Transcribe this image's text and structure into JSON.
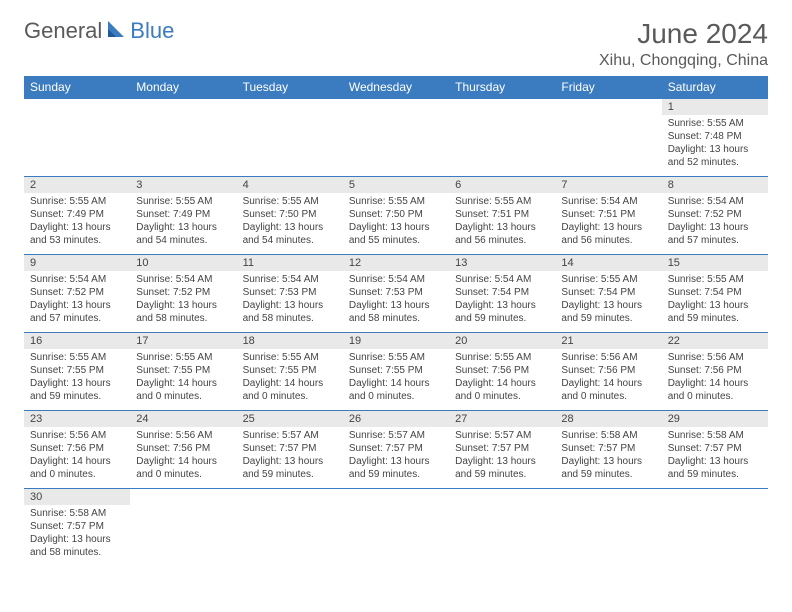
{
  "logo": {
    "text1": "General",
    "text2": "Blue"
  },
  "title": "June 2024",
  "location": "Xihu, Chongqing, China",
  "colors": {
    "header_bg": "#3b7bbf",
    "header_text": "#ffffff",
    "daynum_bg": "#e9e9e9",
    "border": "#3b7bbf",
    "text": "#444444",
    "logo_gray": "#5a5a5a",
    "logo_blue": "#3b7bbf"
  },
  "weekdays": [
    "Sunday",
    "Monday",
    "Tuesday",
    "Wednesday",
    "Thursday",
    "Friday",
    "Saturday"
  ],
  "weeks": [
    [
      null,
      null,
      null,
      null,
      null,
      null,
      {
        "n": "1",
        "sr": "5:55 AM",
        "ss": "7:48 PM",
        "dl": "13 hours and 52 minutes."
      }
    ],
    [
      {
        "n": "2",
        "sr": "5:55 AM",
        "ss": "7:49 PM",
        "dl": "13 hours and 53 minutes."
      },
      {
        "n": "3",
        "sr": "5:55 AM",
        "ss": "7:49 PM",
        "dl": "13 hours and 54 minutes."
      },
      {
        "n": "4",
        "sr": "5:55 AM",
        "ss": "7:50 PM",
        "dl": "13 hours and 54 minutes."
      },
      {
        "n": "5",
        "sr": "5:55 AM",
        "ss": "7:50 PM",
        "dl": "13 hours and 55 minutes."
      },
      {
        "n": "6",
        "sr": "5:55 AM",
        "ss": "7:51 PM",
        "dl": "13 hours and 56 minutes."
      },
      {
        "n": "7",
        "sr": "5:54 AM",
        "ss": "7:51 PM",
        "dl": "13 hours and 56 minutes."
      },
      {
        "n": "8",
        "sr": "5:54 AM",
        "ss": "7:52 PM",
        "dl": "13 hours and 57 minutes."
      }
    ],
    [
      {
        "n": "9",
        "sr": "5:54 AM",
        "ss": "7:52 PM",
        "dl": "13 hours and 57 minutes."
      },
      {
        "n": "10",
        "sr": "5:54 AM",
        "ss": "7:52 PM",
        "dl": "13 hours and 58 minutes."
      },
      {
        "n": "11",
        "sr": "5:54 AM",
        "ss": "7:53 PM",
        "dl": "13 hours and 58 minutes."
      },
      {
        "n": "12",
        "sr": "5:54 AM",
        "ss": "7:53 PM",
        "dl": "13 hours and 58 minutes."
      },
      {
        "n": "13",
        "sr": "5:54 AM",
        "ss": "7:54 PM",
        "dl": "13 hours and 59 minutes."
      },
      {
        "n": "14",
        "sr": "5:55 AM",
        "ss": "7:54 PM",
        "dl": "13 hours and 59 minutes."
      },
      {
        "n": "15",
        "sr": "5:55 AM",
        "ss": "7:54 PM",
        "dl": "13 hours and 59 minutes."
      }
    ],
    [
      {
        "n": "16",
        "sr": "5:55 AM",
        "ss": "7:55 PM",
        "dl": "13 hours and 59 minutes."
      },
      {
        "n": "17",
        "sr": "5:55 AM",
        "ss": "7:55 PM",
        "dl": "14 hours and 0 minutes."
      },
      {
        "n": "18",
        "sr": "5:55 AM",
        "ss": "7:55 PM",
        "dl": "14 hours and 0 minutes."
      },
      {
        "n": "19",
        "sr": "5:55 AM",
        "ss": "7:55 PM",
        "dl": "14 hours and 0 minutes."
      },
      {
        "n": "20",
        "sr": "5:55 AM",
        "ss": "7:56 PM",
        "dl": "14 hours and 0 minutes."
      },
      {
        "n": "21",
        "sr": "5:56 AM",
        "ss": "7:56 PM",
        "dl": "14 hours and 0 minutes."
      },
      {
        "n": "22",
        "sr": "5:56 AM",
        "ss": "7:56 PM",
        "dl": "14 hours and 0 minutes."
      }
    ],
    [
      {
        "n": "23",
        "sr": "5:56 AM",
        "ss": "7:56 PM",
        "dl": "14 hours and 0 minutes."
      },
      {
        "n": "24",
        "sr": "5:56 AM",
        "ss": "7:56 PM",
        "dl": "14 hours and 0 minutes."
      },
      {
        "n": "25",
        "sr": "5:57 AM",
        "ss": "7:57 PM",
        "dl": "13 hours and 59 minutes."
      },
      {
        "n": "26",
        "sr": "5:57 AM",
        "ss": "7:57 PM",
        "dl": "13 hours and 59 minutes."
      },
      {
        "n": "27",
        "sr": "5:57 AM",
        "ss": "7:57 PM",
        "dl": "13 hours and 59 minutes."
      },
      {
        "n": "28",
        "sr": "5:58 AM",
        "ss": "7:57 PM",
        "dl": "13 hours and 59 minutes."
      },
      {
        "n": "29",
        "sr": "5:58 AM",
        "ss": "7:57 PM",
        "dl": "13 hours and 59 minutes."
      }
    ],
    [
      {
        "n": "30",
        "sr": "5:58 AM",
        "ss": "7:57 PM",
        "dl": "13 hours and 58 minutes."
      },
      null,
      null,
      null,
      null,
      null,
      null
    ]
  ],
  "labels": {
    "sunrise": "Sunrise:",
    "sunset": "Sunset:",
    "daylight": "Daylight:"
  }
}
